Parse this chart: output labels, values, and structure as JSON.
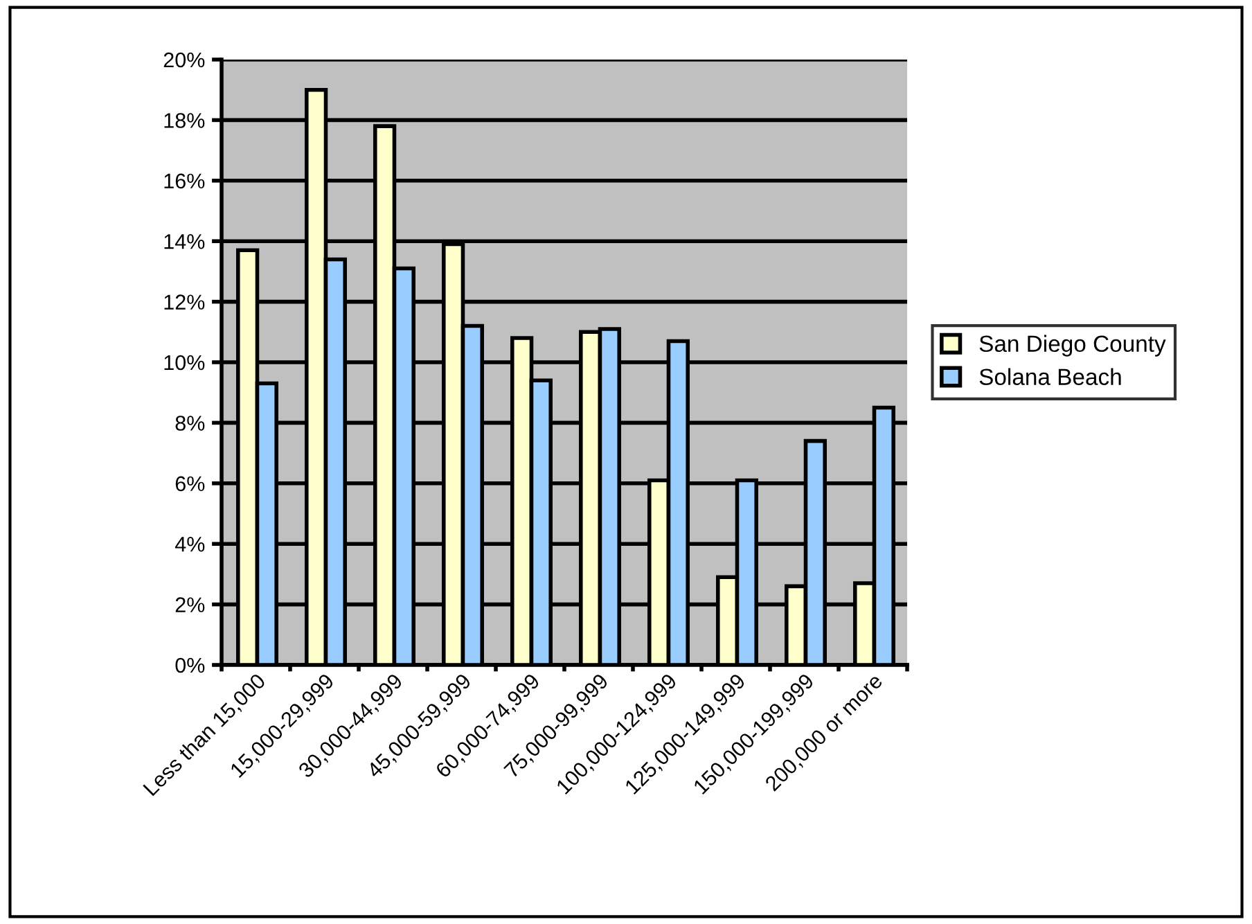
{
  "chart_data": {
    "type": "bar",
    "categories": [
      "Less than 15,000",
      "15,000-29,999",
      "30,000-44,999",
      "45,000-59,999",
      "60,000-74,999",
      "75,000-99,999",
      "100,000-124,999",
      "125,000-149,999",
      "150,000-199,999",
      "200,000 or more"
    ],
    "series": [
      {
        "name": "San Diego County",
        "color": "#ffffcc",
        "values": [
          13.7,
          19.0,
          17.8,
          13.9,
          10.8,
          11.0,
          6.1,
          2.9,
          2.6,
          2.7
        ]
      },
      {
        "name": "Solana Beach",
        "color": "#99ccff",
        "values": [
          9.3,
          13.4,
          13.1,
          11.2,
          9.4,
          11.1,
          10.7,
          6.1,
          7.4,
          8.5
        ]
      }
    ],
    "ylim": [
      0,
      20
    ],
    "yticks": [
      {
        "value": 0,
        "label": "0%"
      },
      {
        "value": 2,
        "label": "2%"
      },
      {
        "value": 4,
        "label": "4%"
      },
      {
        "value": 6,
        "label": "6%"
      },
      {
        "value": 8,
        "label": "8%"
      },
      {
        "value": 10,
        "label": "10%"
      },
      {
        "value": 12,
        "label": "12%"
      },
      {
        "value": 14,
        "label": "14%"
      },
      {
        "value": 16,
        "label": "16%"
      },
      {
        "value": 18,
        "label": "18%"
      },
      {
        "value": 20,
        "label": "20%"
      }
    ],
    "grid": "y",
    "legend": "right"
  }
}
